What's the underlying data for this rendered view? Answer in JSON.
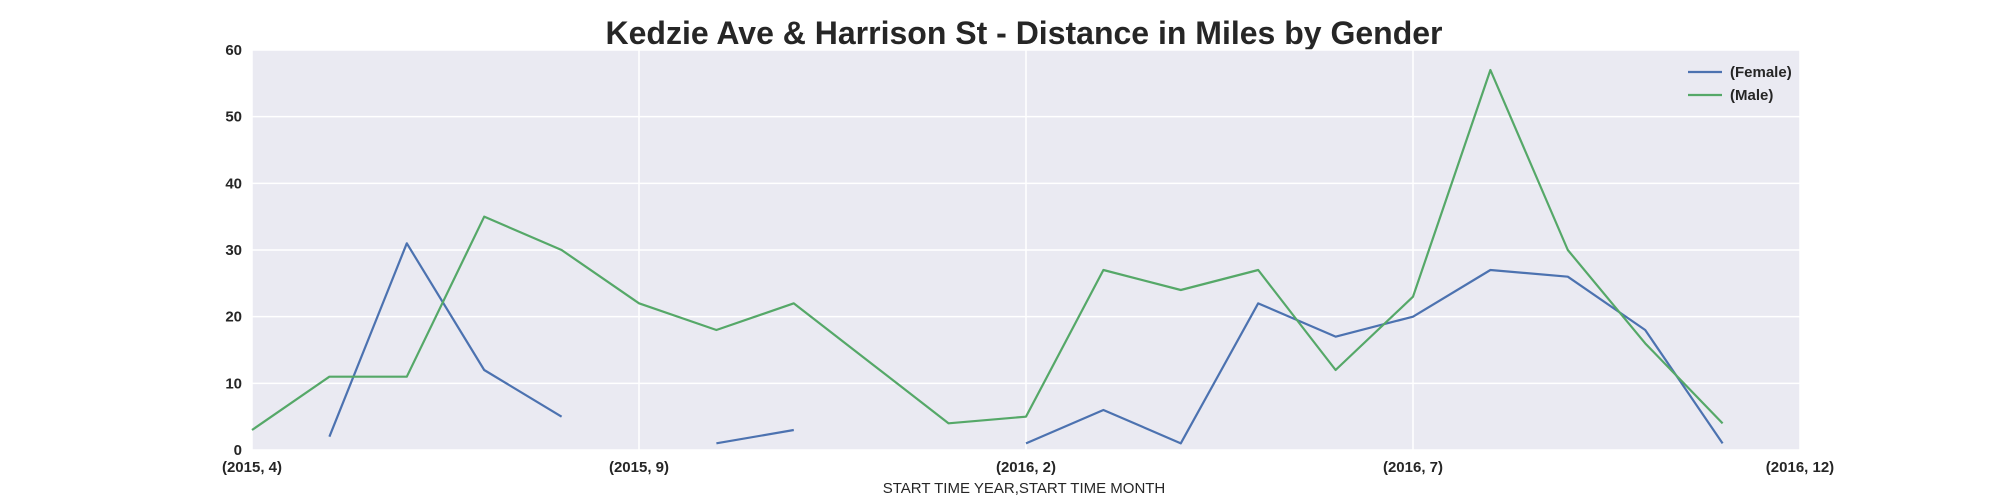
{
  "chart_data": {
    "type": "line",
    "title": "Kedzie Ave & Harrison St - Distance in Miles by Gender",
    "xlabel": "START TIME YEAR,START TIME MONTH",
    "ylabel": "",
    "ylim": [
      0,
      60
    ],
    "yticks": [
      0,
      10,
      20,
      30,
      40,
      50,
      60
    ],
    "x": [
      "(2015, 4)",
      "(2015, 5)",
      "(2015, 6)",
      "(2015, 7)",
      "(2015, 8)",
      "(2015, 9)",
      "(2015, 10)",
      "(2015, 11)",
      "(2015, 12)",
      "(2016, 1)",
      "(2016, 2)",
      "(2016, 3)",
      "(2016, 4)",
      "(2016, 5)",
      "(2016, 6)",
      "(2016, 7)",
      "(2016, 8)",
      "(2016, 9)",
      "(2016, 10)",
      "(2016, 11)",
      "(2016, 12)"
    ],
    "xticks": [
      "(2015, 4)",
      "(2015, 9)",
      "(2016, 2)",
      "(2016, 7)",
      "(2016, 12)"
    ],
    "grid": true,
    "legend_position": "top-right",
    "series": [
      {
        "name": "(Female)",
        "color": "#4c72b0",
        "values": [
          null,
          2,
          31,
          12,
          5,
          null,
          1,
          3,
          null,
          null,
          1,
          6,
          1,
          22,
          17,
          20,
          27,
          26,
          18,
          1,
          null
        ]
      },
      {
        "name": "(Male)",
        "color": "#55a868",
        "values": [
          3,
          11,
          11,
          35,
          30,
          22,
          18,
          22,
          13,
          4,
          5,
          27,
          24,
          27,
          12,
          23,
          57,
          30,
          16,
          4,
          null
        ]
      }
    ]
  }
}
